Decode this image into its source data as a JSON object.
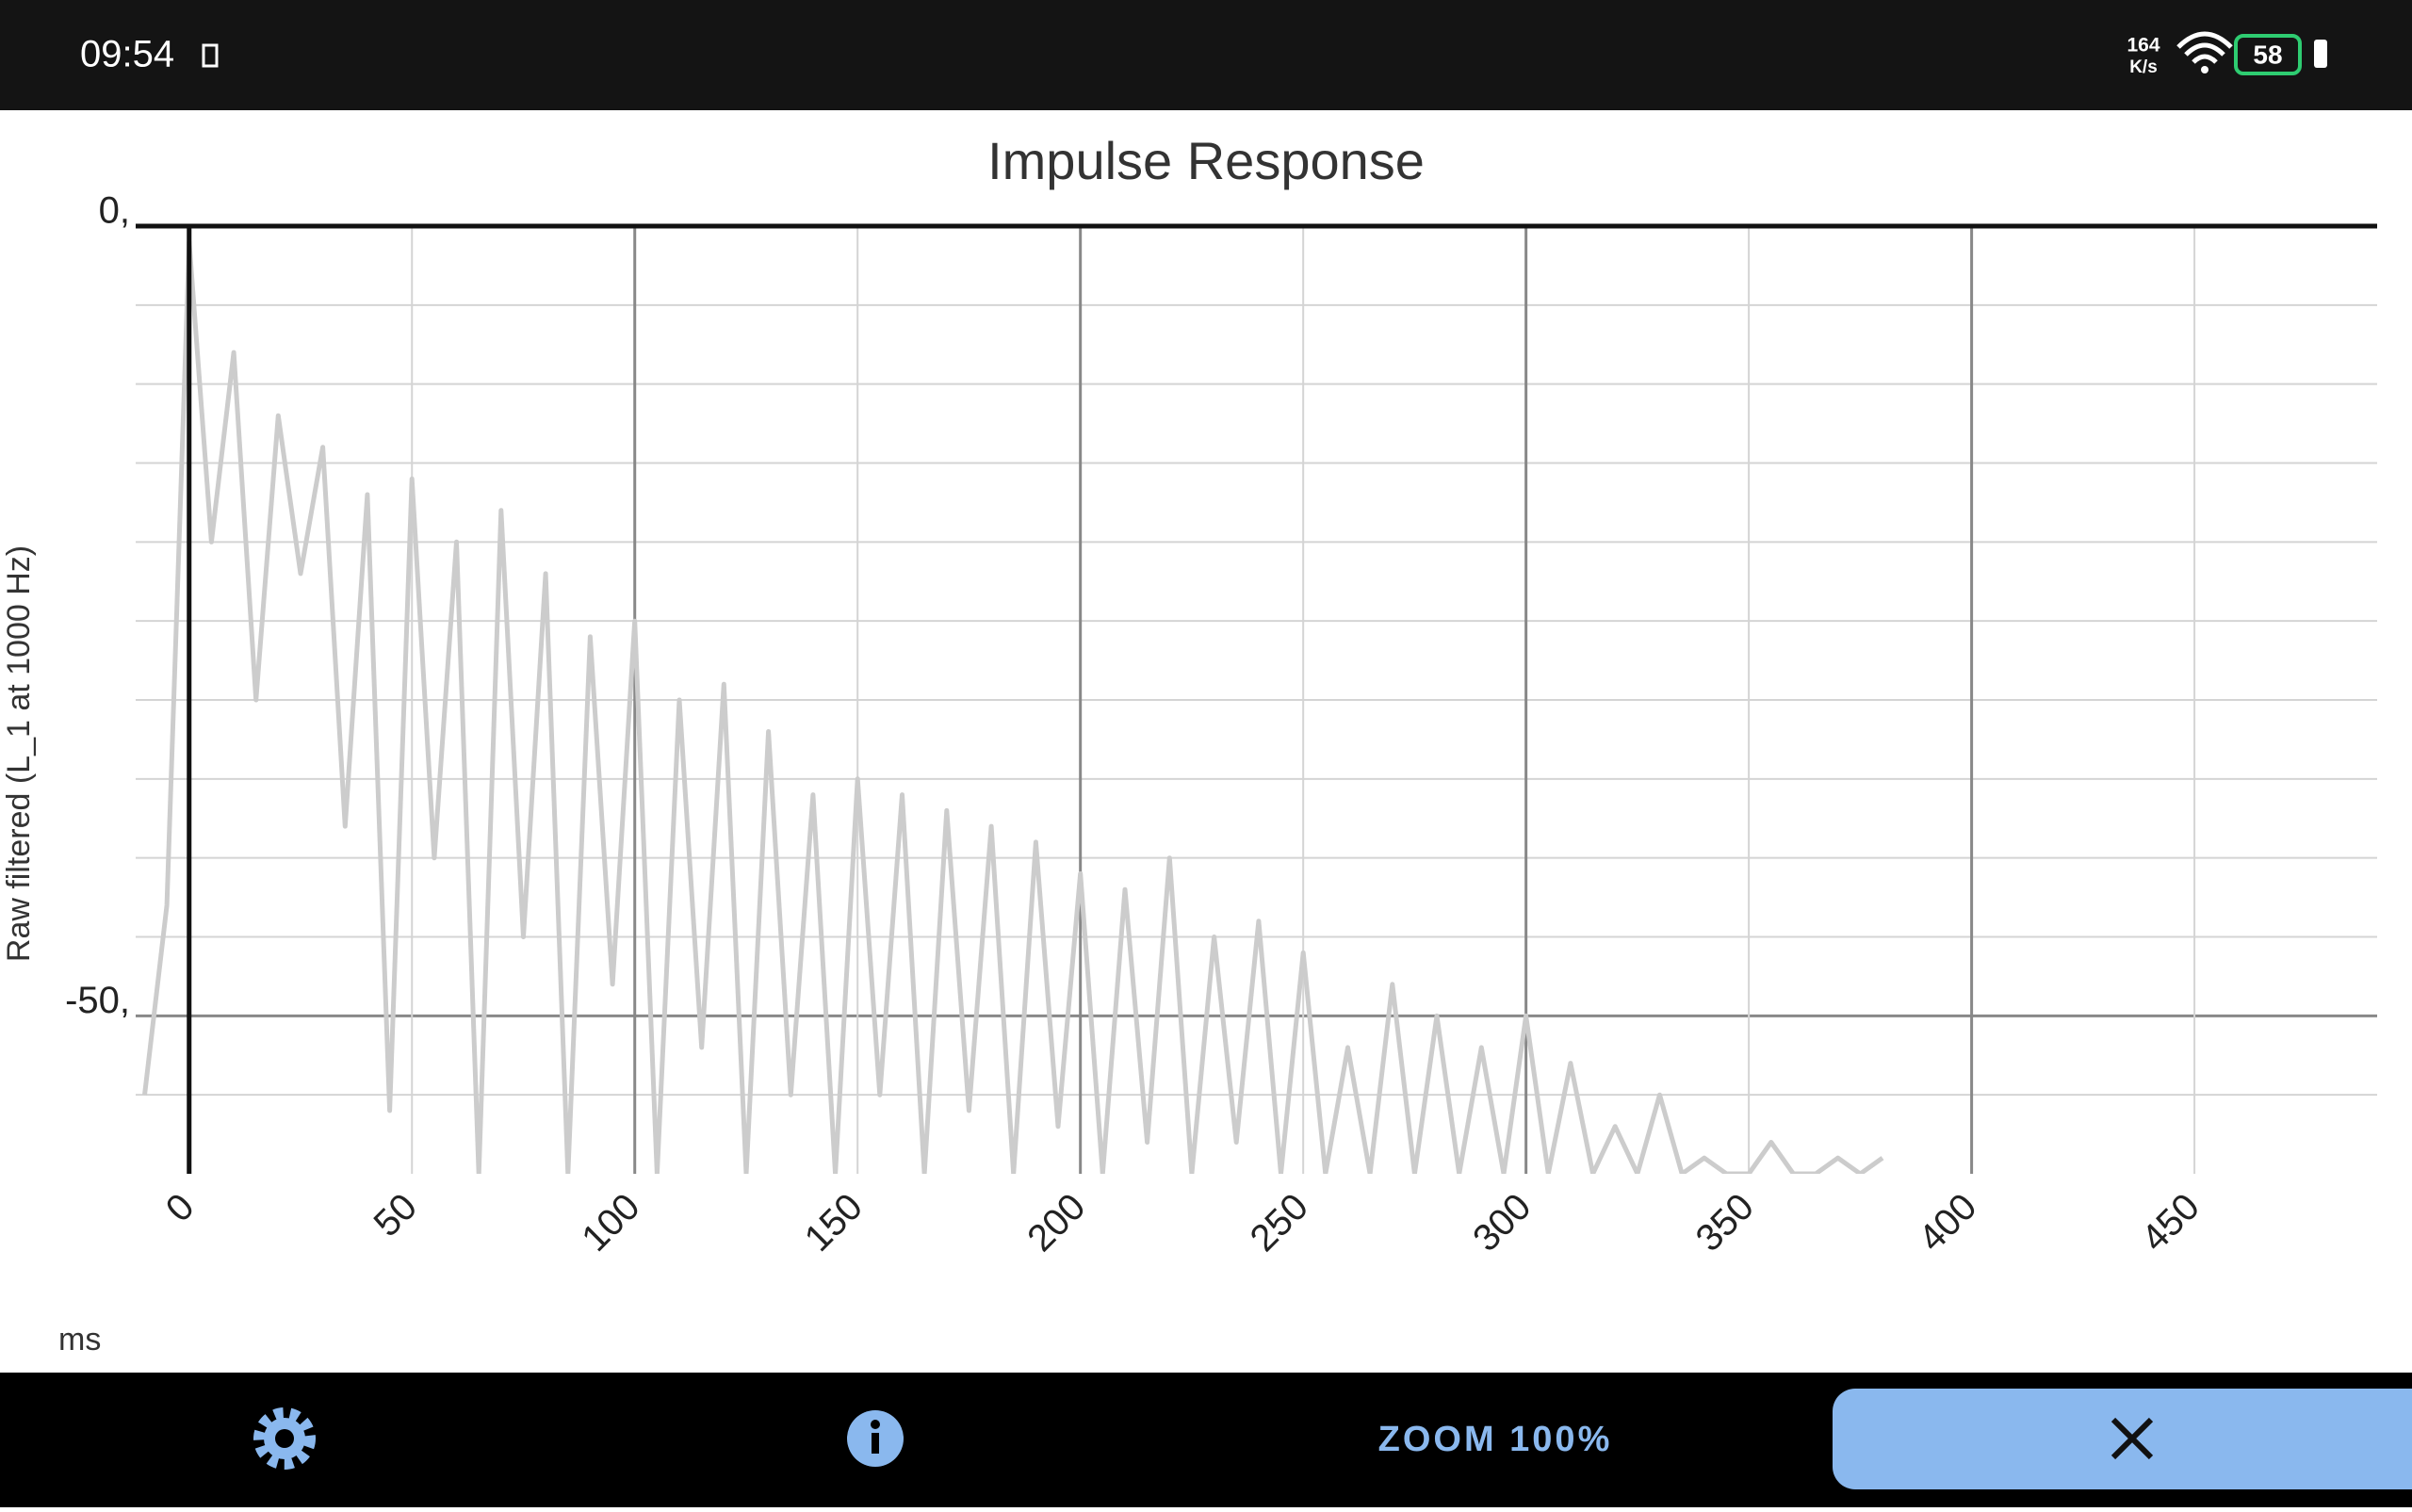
{
  "status_bar": {
    "time": "09:54",
    "network_speed": "164",
    "network_unit": "K/s",
    "battery": "58"
  },
  "chart_data": {
    "type": "line",
    "title": "Impulse Response",
    "y_label": "Raw filtered (L_1 at 1000 Hz)",
    "x_label": "ms",
    "x": [
      -10,
      -5,
      0,
      5,
      10,
      15,
      20,
      25,
      30,
      35,
      40,
      45,
      50,
      55,
      60,
      65,
      70,
      75,
      80,
      85,
      90,
      95,
      100,
      105,
      110,
      115,
      120,
      125,
      130,
      135,
      140,
      145,
      150,
      155,
      160,
      165,
      170,
      175,
      180,
      185,
      190,
      195,
      200,
      205,
      210,
      215,
      220,
      225,
      230,
      235,
      240,
      245,
      250,
      255,
      260,
      265,
      270,
      275,
      280,
      285,
      290,
      295,
      300,
      305,
      310,
      315,
      320,
      325,
      330,
      335,
      340,
      345,
      350,
      355,
      360,
      365,
      370,
      375,
      380
    ],
    "values": [
      -55,
      -43,
      -1,
      -20,
      -8,
      -30,
      -12,
      -22,
      -14,
      -38,
      -17,
      -56,
      -16,
      -40,
      -20,
      -60,
      -18,
      -45,
      -22,
      -60,
      -26,
      -48,
      -25,
      -60,
      -30,
      -52,
      -29,
      -60,
      -32,
      -55,
      -36,
      -60,
      -35,
      -55,
      -36,
      -60,
      -37,
      -56,
      -38,
      -60,
      -39,
      -57,
      -41,
      -60,
      -42,
      -58,
      -40,
      -60,
      -45,
      -58,
      -44,
      -60,
      -46,
      -60,
      -52,
      -60,
      -48,
      -60,
      -50,
      -60,
      -52,
      -60,
      -50,
      -60,
      -53,
      -60,
      -57,
      -60,
      -55,
      -60,
      -59,
      -60,
      -60,
      -58,
      -60,
      -60,
      -59,
      -60,
      -59
    ],
    "color": "#cccccc",
    "xlim": [
      -12,
      491
    ],
    "ylim": [
      -60,
      0
    ],
    "xticks": [
      0,
      50,
      100,
      150,
      200,
      250,
      300,
      350,
      400,
      450
    ],
    "yticks": [
      {
        "value": 0,
        "label": "0,"
      },
      {
        "value": -50,
        "label": "-50,"
      }
    ],
    "y_minor_ticks": [
      -5,
      -10,
      -15,
      -20,
      -25,
      -30,
      -35,
      -40,
      -45,
      -55
    ],
    "grid": true
  },
  "toolbar": {
    "zoom": "ZOOM 100%"
  }
}
